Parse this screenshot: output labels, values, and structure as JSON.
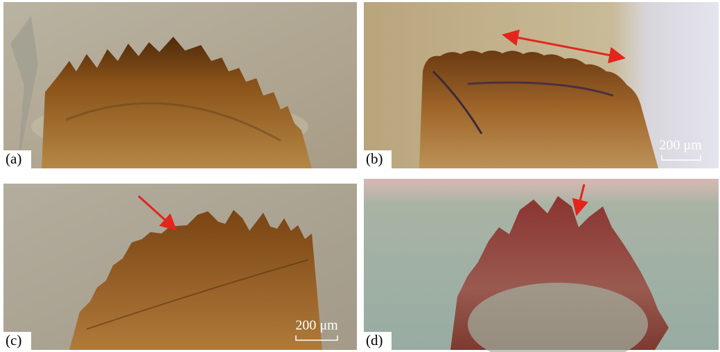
{
  "panels": [
    {
      "label": "(a)"
    },
    {
      "label": "(b)",
      "scale_bar": "200 μm"
    },
    {
      "label": "(c)",
      "scale_bar": "200 μm"
    },
    {
      "label": "(d)"
    }
  ]
}
